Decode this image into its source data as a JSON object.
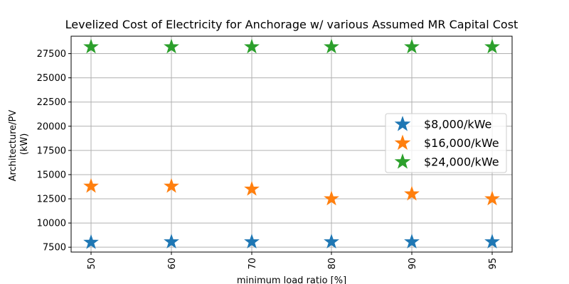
{
  "chart_data": {
    "type": "scatter",
    "title": "Levelized Cost of Electricity for Anchorage w/ various Assumed MR Capital Cost",
    "xlabel": "minimum load ratio [%]",
    "ylabel": [
      "Architecture/PV",
      "(kW)"
    ],
    "categories": [
      "50",
      "60",
      "70",
      "80",
      "90",
      "95"
    ],
    "ylim": [
      7000,
      29300
    ],
    "yticks": [
      "7500",
      "10000",
      "12500",
      "15000",
      "17500",
      "20000",
      "22500",
      "25000",
      "27500"
    ],
    "grid": true,
    "legend_position": "center-right",
    "marker": "star",
    "series": [
      {
        "name": "$8,000/kWe",
        "color": "#1f77b4",
        "values": [
          8000,
          8050,
          8050,
          8050,
          8050,
          8050
        ]
      },
      {
        "name": "$16,000/kWe",
        "color": "#ff7f0e",
        "values": [
          13800,
          13800,
          13500,
          12500,
          13000,
          12500
        ]
      },
      {
        "name": "$24,000/kWe",
        "color": "#2ca02c",
        "values": [
          28200,
          28200,
          28200,
          28200,
          28200,
          28200
        ]
      }
    ]
  }
}
